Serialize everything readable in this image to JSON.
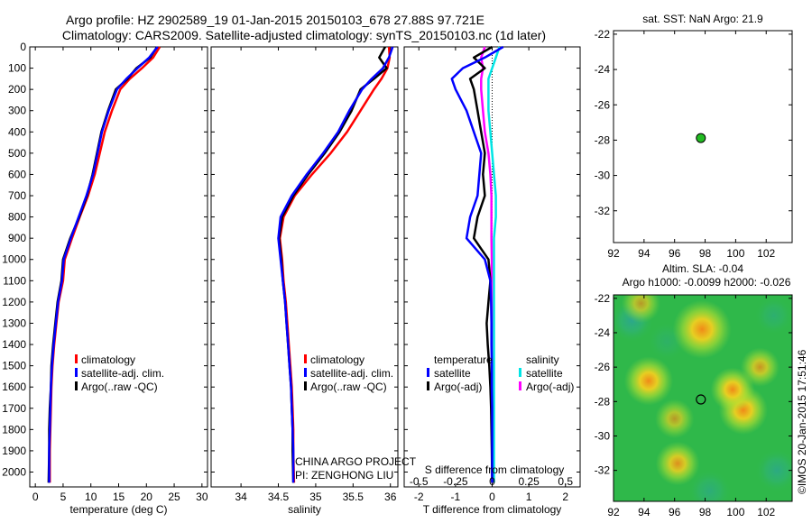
{
  "header": {
    "line1": "Argo profile: HZ 2902589_19 01-Jan-2015 20150103_678 27.88S 97.721E",
    "line2": "Climatology: CARS2009. Satellite-adjusted climatology: synTS_20150103.nc (1d later)"
  },
  "colors": {
    "climatology": "#ff0000",
    "satellite": "#0000ff",
    "argo": "#000000",
    "sal_satellite": "#00e5e5",
    "sal_argo": "#ff00ff",
    "marker": "#22bb22",
    "sla_base": "#2fb84a"
  },
  "credit": "©IMOS 20-Jan-2015 17:51:46",
  "project": {
    "line1": "CHINA ARGO PROJECT",
    "line2": "PI: ZENGHONG LIU"
  },
  "legend_tp": [
    "climatology",
    "satellite-adj. clim.",
    "Argo(..raw -QC)"
  ],
  "legend_diff": {
    "temp_title": "temperature",
    "sal_title": "salinity",
    "temp_items": [
      "satellite",
      "Argo(-adj)"
    ],
    "sal_items": [
      "satellite",
      "Argo(-adj)"
    ]
  },
  "chart_data": [
    {
      "type": "line",
      "xlabel": "temperature (deg C)",
      "xlim": [
        -1,
        31
      ],
      "ylim": [
        2070,
        0
      ],
      "xticks": [
        0,
        5,
        10,
        15,
        20,
        25,
        30
      ],
      "yticks": [
        0,
        100,
        200,
        300,
        400,
        500,
        600,
        700,
        800,
        900,
        1000,
        1100,
        1200,
        1300,
        1400,
        1500,
        1600,
        1700,
        1800,
        1900,
        2000
      ],
      "series": [
        {
          "name": "climatology",
          "x": [
            22.4,
            21.2,
            19.2,
            17.0,
            15.3,
            13.8,
            12.5,
            11.6,
            10.7,
            9.5,
            8.0,
            6.6,
            5.3,
            5.0,
            4.2,
            3.8,
            3.4,
            3.1,
            2.9,
            2.8,
            2.7,
            2.6,
            2.6
          ],
          "y": [
            0,
            50,
            100,
            150,
            200,
            300,
            400,
            500,
            600,
            700,
            800,
            900,
            1000,
            1100,
            1200,
            1300,
            1400,
            1500,
            1600,
            1700,
            1800,
            1900,
            2050
          ]
        },
        {
          "name": "satellite-adj. clim.",
          "x": [
            22.0,
            20.5,
            18.4,
            16.4,
            14.7,
            13.2,
            12.0,
            11.2,
            10.4,
            9.2,
            7.8,
            6.4,
            5.1,
            4.8,
            4.1,
            3.7,
            3.3,
            3.0,
            2.8,
            2.7,
            2.6,
            2.5,
            2.5
          ],
          "y": [
            0,
            50,
            100,
            150,
            200,
            300,
            400,
            500,
            600,
            700,
            800,
            900,
            1000,
            1100,
            1200,
            1300,
            1400,
            1500,
            1600,
            1700,
            1800,
            1900,
            2050
          ]
        },
        {
          "name": "Argo(..raw -QC)",
          "x": [
            21.9,
            20.7,
            18.2,
            16.6,
            14.5,
            13.1,
            11.9,
            11.1,
            10.3,
            9.3,
            7.9,
            6.3,
            5.0,
            4.7,
            4.0,
            3.6,
            3.2,
            2.9,
            2.8,
            2.6,
            2.5,
            2.5,
            2.4
          ],
          "y": [
            0,
            50,
            100,
            150,
            200,
            300,
            400,
            500,
            600,
            700,
            800,
            900,
            1000,
            1100,
            1200,
            1300,
            1400,
            1500,
            1600,
            1700,
            1800,
            1900,
            2050
          ]
        }
      ]
    },
    {
      "type": "line",
      "xlabel": "salinity",
      "xlim": [
        33.6,
        36.1
      ],
      "ylim": [
        2070,
        0
      ],
      "xticks": [
        34,
        34.5,
        35,
        35.5,
        36
      ],
      "series": [
        {
          "name": "climatology",
          "x": [
            35.98,
            35.99,
            35.96,
            35.88,
            35.78,
            35.6,
            35.42,
            35.2,
            34.95,
            34.72,
            34.57,
            34.52,
            34.55,
            34.57,
            34.6,
            34.62,
            34.64,
            34.66,
            34.68,
            34.69,
            34.7,
            34.7,
            34.71
          ],
          "y": [
            0,
            50,
            100,
            150,
            200,
            300,
            400,
            500,
            600,
            700,
            800,
            900,
            1000,
            1100,
            1200,
            1300,
            1400,
            1500,
            1600,
            1700,
            1800,
            1900,
            2050
          ]
        },
        {
          "name": "satellite-adj. clim.",
          "x": [
            36.03,
            35.98,
            35.9,
            35.75,
            35.62,
            35.45,
            35.3,
            35.1,
            34.88,
            34.68,
            34.53,
            34.5,
            34.53,
            34.56,
            34.59,
            34.61,
            34.63,
            34.65,
            34.67,
            34.68,
            34.69,
            34.7,
            34.7
          ],
          "y": [
            0,
            50,
            100,
            150,
            200,
            300,
            400,
            500,
            600,
            700,
            800,
            900,
            1000,
            1100,
            1200,
            1300,
            1400,
            1500,
            1600,
            1700,
            1800,
            1900,
            2050
          ]
        },
        {
          "name": "Argo(..raw -QC)",
          "x": [
            35.93,
            35.85,
            35.95,
            35.78,
            35.6,
            35.48,
            35.32,
            35.12,
            34.9,
            34.7,
            34.55,
            34.51,
            34.54,
            34.56,
            34.59,
            34.61,
            34.63,
            34.65,
            34.67,
            34.68,
            34.69,
            34.69,
            34.7
          ],
          "y": [
            0,
            50,
            100,
            150,
            200,
            300,
            400,
            500,
            600,
            700,
            800,
            900,
            1000,
            1100,
            1200,
            1300,
            1400,
            1500,
            1600,
            1700,
            1800,
            1900,
            2050
          ]
        }
      ]
    },
    {
      "type": "line",
      "xlabel": "T difference from climatology",
      "top_label": "S difference from climatology",
      "xlim": [
        -2.4,
        2.4
      ],
      "ylim": [
        2070,
        0
      ],
      "xticks": [
        -2,
        -1,
        0,
        1,
        2
      ],
      "sticks": [
        "-0.5",
        "-0.25",
        "0",
        "0.25",
        "0.5"
      ],
      "sticks_pos": [
        -2,
        -1,
        0,
        1,
        2
      ],
      "series": [
        {
          "name": "temperature satellite",
          "x": [
            0.3,
            -0.2,
            -0.8,
            -1.1,
            -1.0,
            -0.7,
            -0.5,
            -0.3,
            -0.35,
            -0.4,
            -0.6,
            -0.7,
            -0.2,
            -0.05,
            -0.03,
            -0.02,
            -0.02,
            -0.01,
            -0.01,
            0,
            0,
            0,
            0
          ],
          "y": [
            0,
            50,
            100,
            150,
            200,
            300,
            400,
            500,
            600,
            700,
            800,
            900,
            1000,
            1100,
            1200,
            1300,
            1400,
            1500,
            1600,
            1700,
            1800,
            1900,
            2050
          ]
        },
        {
          "name": "temperature Argo(-adj)",
          "x": [
            0.0,
            -0.5,
            -0.2,
            -0.6,
            -0.5,
            -0.4,
            -0.3,
            -0.2,
            -0.25,
            -0.2,
            -0.4,
            -0.5,
            -0.1,
            -0.05,
            -0.1,
            -0.15,
            -0.12,
            -0.08,
            -0.05,
            -0.03,
            -0.02,
            -0.01,
            0
          ],
          "y": [
            0,
            50,
            100,
            150,
            200,
            300,
            400,
            500,
            600,
            700,
            800,
            900,
            1000,
            1100,
            1200,
            1300,
            1400,
            1500,
            1600,
            1700,
            1800,
            1900,
            2050
          ]
        },
        {
          "name": "salinity satellite",
          "x": [
            0.2,
            0.1,
            0.0,
            -0.1,
            -0.1,
            -0.1,
            -0.05,
            0,
            0.05,
            0.1,
            0.1,
            0.05,
            0.05,
            0.05,
            0.05,
            0.05,
            0.05,
            0.05,
            0.05,
            0.05,
            0.05,
            0.05,
            0.05
          ],
          "y": [
            0,
            50,
            100,
            150,
            200,
            300,
            400,
            500,
            600,
            700,
            800,
            900,
            1000,
            1100,
            1200,
            1300,
            1400,
            1500,
            1600,
            1700,
            1800,
            1900,
            2050
          ]
        },
        {
          "name": "salinity Argo(-adj)",
          "x": [
            -0.2,
            -0.3,
            -0.25,
            -0.3,
            -0.3,
            -0.25,
            -0.2,
            -0.1,
            -0.05,
            -0.02,
            -0.02,
            -0.02,
            -0.01,
            -0.01,
            -0.01,
            0,
            0,
            0,
            0,
            0,
            0,
            0,
            0
          ],
          "y": [
            0,
            50,
            100,
            150,
            200,
            300,
            400,
            500,
            600,
            700,
            800,
            900,
            1000,
            1100,
            1200,
            1300,
            1400,
            1500,
            1600,
            1700,
            1800,
            1900,
            2050
          ]
        }
      ]
    },
    {
      "type": "scatter",
      "title": "sat. SST: NaN Argo: 21.9",
      "xlim": [
        92,
        103.7
      ],
      "ylim": [
        -33.8,
        -21.8
      ],
      "xticks": [
        92,
        94,
        96,
        98,
        100,
        102
      ],
      "yticks": [
        -22,
        -24,
        -26,
        -28,
        -30,
        -32
      ],
      "points": [
        {
          "x": 97.72,
          "y": -27.88
        }
      ]
    },
    {
      "type": "heatmap",
      "title_line1": "Altim. SLA: -0.04",
      "title_line2": "Argo h1000: -0.0099 h2000: -0.026",
      "xlim": [
        92,
        103.7
      ],
      "ylim": [
        -33.8,
        -21.8
      ],
      "xticks": [
        92,
        94,
        96,
        98,
        100,
        102
      ],
      "yticks": [
        -22,
        -24,
        -26,
        -28,
        -30,
        -32
      ],
      "warm_spots": [
        {
          "x": 97.8,
          "y": -23.8,
          "s": 1.0,
          "r": 1.2
        },
        {
          "x": 94.3,
          "y": -26.8,
          "s": 0.8,
          "r": 1.0
        },
        {
          "x": 100.5,
          "y": -28.5,
          "s": 0.9,
          "r": 1.0
        },
        {
          "x": 99.8,
          "y": -27.3,
          "s": 0.6,
          "r": 0.9
        },
        {
          "x": 101.6,
          "y": -26.0,
          "s": 0.4,
          "r": 0.8
        },
        {
          "x": 96.2,
          "y": -31.6,
          "s": 0.5,
          "r": 0.9
        },
        {
          "x": 93.8,
          "y": -22.3,
          "s": 0.3,
          "r": 0.8
        },
        {
          "x": 96.0,
          "y": -29.0,
          "s": 0.3,
          "r": 0.8
        }
      ],
      "cool_spots": [
        {
          "x": 93.2,
          "y": -23.3,
          "s": 0.7,
          "r": 0.9
        },
        {
          "x": 102.7,
          "y": -32.0,
          "s": 0.6,
          "r": 0.9
        },
        {
          "x": 98.3,
          "y": -33.2,
          "s": 0.5,
          "r": 0.9
        },
        {
          "x": 102.5,
          "y": -23.0,
          "s": 0.4,
          "r": 0.8
        },
        {
          "x": 95.5,
          "y": -24.5,
          "s": 0.3,
          "r": 0.8
        }
      ],
      "marker": {
        "x": 97.72,
        "y": -27.88
      }
    }
  ]
}
